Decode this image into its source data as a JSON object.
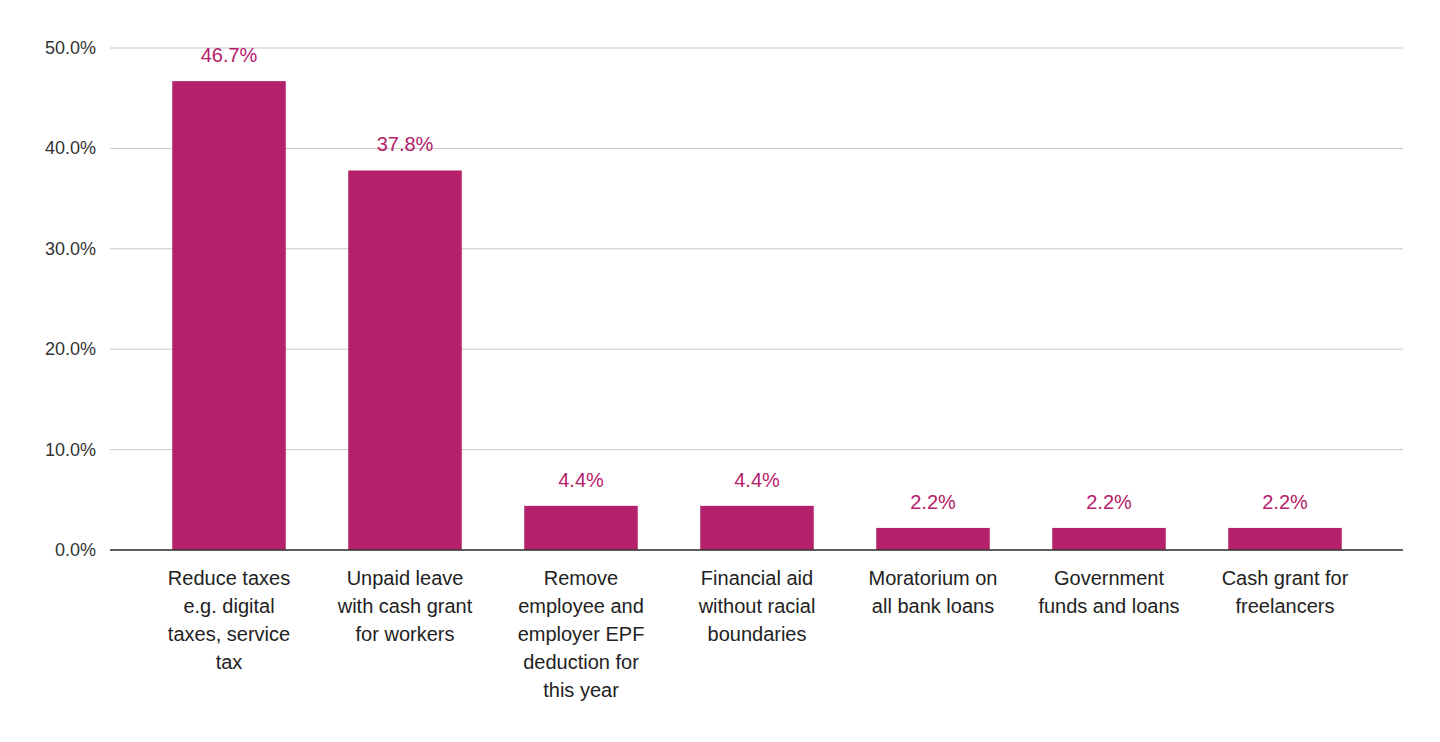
{
  "chart_data": {
    "type": "bar",
    "categories": [
      "Reduce taxes e.g. digital taxes, service tax",
      "Unpaid leave with cash grant for workers",
      "Remove employee and employer EPF deduction for this year",
      "Financial aid without racial boundaries",
      "Moratorium on all bank loans",
      "Government funds and loans",
      "Cash grant for freelancers"
    ],
    "values": [
      46.7,
      37.8,
      4.4,
      4.4,
      2.2,
      2.2,
      2.2
    ],
    "value_labels": [
      "46.7%",
      "37.8%",
      "4.4%",
      "4.4%",
      "2.2%",
      "2.2%",
      "2.2%"
    ],
    "color": "#b5206a",
    "ylim": [
      0,
      50
    ],
    "yticks": [
      {
        "value": 0,
        "label": "0.0%"
      },
      {
        "value": 10,
        "label": "10.0%"
      },
      {
        "value": 20,
        "label": "20.0%"
      },
      {
        "value": 30,
        "label": "30.0%"
      },
      {
        "value": 40,
        "label": "40.0%"
      },
      {
        "value": 50,
        "label": "50.0%"
      }
    ],
    "grid": true,
    "data_labels": true
  }
}
